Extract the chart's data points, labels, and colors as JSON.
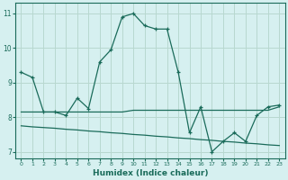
{
  "xlabel": "Humidex (Indice chaleur)",
  "bg_color": "#d6f0f0",
  "grid_color": "#b8d8d0",
  "line_color": "#1a6b5a",
  "xlim": [
    -0.5,
    23.5
  ],
  "ylim": [
    6.8,
    11.3
  ],
  "yticks": [
    7,
    8,
    9,
    10,
    11
  ],
  "xticks": [
    0,
    1,
    2,
    3,
    4,
    5,
    6,
    7,
    8,
    9,
    10,
    11,
    12,
    13,
    14,
    15,
    16,
    17,
    18,
    19,
    20,
    21,
    22,
    23
  ],
  "series1_x": [
    0,
    1,
    2,
    3,
    4,
    5,
    6,
    7,
    8,
    9,
    10,
    11,
    12,
    13,
    14,
    15,
    16,
    17,
    18,
    19,
    20,
    21,
    22,
    23
  ],
  "series1_y": [
    9.3,
    9.15,
    8.15,
    8.15,
    8.05,
    8.55,
    8.25,
    9.6,
    9.95,
    10.9,
    11.0,
    10.65,
    10.55,
    10.55,
    9.3,
    7.55,
    8.3,
    7.0,
    7.3,
    7.55,
    7.3,
    8.05,
    8.3,
    8.35
  ],
  "series2_x": [
    0,
    1,
    2,
    3,
    4,
    5,
    6,
    7,
    8,
    9,
    10,
    11,
    12,
    13,
    14,
    15,
    16,
    17,
    18,
    19,
    20,
    21,
    22,
    23
  ],
  "series2_y": [
    8.15,
    8.15,
    8.15,
    8.15,
    8.15,
    8.15,
    8.15,
    8.15,
    8.15,
    8.15,
    8.2,
    8.2,
    8.2,
    8.2,
    8.2,
    8.2,
    8.2,
    8.2,
    8.2,
    8.2,
    8.2,
    8.2,
    8.2,
    8.3
  ],
  "series3_x": [
    0,
    1,
    2,
    3,
    4,
    5,
    6,
    7,
    8,
    9,
    10,
    11,
    12,
    13,
    14,
    15,
    16,
    17,
    18,
    19,
    20,
    21,
    22,
    23
  ],
  "series3_y": [
    7.75,
    7.72,
    7.7,
    7.68,
    7.65,
    7.63,
    7.6,
    7.58,
    7.55,
    7.53,
    7.5,
    7.48,
    7.45,
    7.43,
    7.4,
    7.38,
    7.35,
    7.33,
    7.3,
    7.28,
    7.25,
    7.23,
    7.2,
    7.18
  ]
}
